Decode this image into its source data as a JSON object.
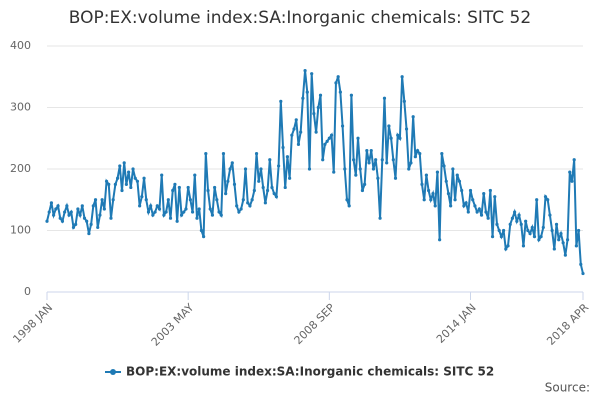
{
  "chart_data": {
    "type": "line",
    "title": "BOP:EX:volume index:SA:Inorganic chemicals: SITC 52",
    "source": "Source:",
    "categories": [
      "1998 JAN",
      null,
      null,
      null,
      null,
      null,
      null,
      null,
      null,
      null,
      null,
      null,
      null,
      null,
      null,
      null,
      null,
      null,
      null,
      null,
      null,
      null,
      null,
      null,
      null,
      null,
      null,
      null,
      null,
      null,
      null,
      null,
      null,
      null,
      null,
      null,
      null,
      null,
      null,
      null,
      null,
      null,
      null,
      null,
      null,
      null,
      null,
      null,
      null,
      null,
      null,
      null,
      null,
      null,
      null,
      null,
      null,
      null,
      null,
      null,
      null,
      null,
      null,
      null,
      "2003 MAY",
      null,
      null,
      null,
      null,
      null,
      null,
      null,
      null,
      null,
      null,
      null,
      null,
      null,
      null,
      null,
      null,
      null,
      null,
      null,
      null,
      null,
      null,
      null,
      null,
      null,
      null,
      null,
      null,
      null,
      null,
      null,
      null,
      null,
      null,
      null,
      null,
      null,
      null,
      null,
      null,
      null,
      null,
      null,
      null,
      null,
      null,
      null,
      null,
      null,
      null,
      null,
      null,
      null,
      null,
      null,
      null,
      null,
      null,
      null,
      null,
      null,
      null,
      null,
      "2008 SEP",
      null,
      null,
      null,
      null,
      null,
      null,
      null,
      null,
      null,
      null,
      null,
      null,
      null,
      null,
      null,
      null,
      null,
      null,
      null,
      null,
      null,
      null,
      null,
      null,
      null,
      null,
      null,
      null,
      null,
      null,
      null,
      null,
      null,
      null,
      null,
      null,
      null,
      null,
      null,
      null,
      null,
      null,
      null,
      null,
      null,
      null,
      null,
      null,
      null,
      null,
      null,
      null,
      null,
      null,
      null,
      null,
      null,
      null,
      null,
      null,
      null,
      null,
      null,
      "2014 JAN",
      null,
      null,
      null,
      null,
      null,
      null,
      null,
      null,
      null,
      null,
      null,
      null,
      null,
      null,
      null,
      null,
      null,
      null,
      null,
      null,
      null,
      null,
      null,
      null,
      null,
      null,
      null,
      null,
      null,
      null,
      null,
      null,
      null,
      null,
      null,
      null,
      null,
      null,
      null,
      null,
      null,
      null,
      null,
      null,
      null,
      null,
      null,
      null,
      null,
      null,
      "2018 APR"
    ],
    "series": [
      {
        "name": "BOP:EX:volume index:SA:Inorganic chemicals: SITC 52",
        "color": "#1f7ab5",
        "values": [
          115,
          130,
          145,
          125,
          135,
          140,
          120,
          115,
          130,
          140,
          125,
          130,
          105,
          110,
          135,
          125,
          140,
          120,
          115,
          95,
          110,
          140,
          150,
          105,
          125,
          150,
          135,
          180,
          175,
          120,
          150,
          175,
          185,
          205,
          165,
          210,
          175,
          195,
          170,
          200,
          185,
          180,
          140,
          155,
          185,
          150,
          130,
          140,
          125,
          130,
          140,
          135,
          190,
          125,
          130,
          150,
          120,
          165,
          175,
          115,
          170,
          125,
          130,
          135,
          170,
          150,
          130,
          190,
          120,
          135,
          100,
          90,
          225,
          165,
          135,
          125,
          170,
          150,
          130,
          125,
          225,
          160,
          180,
          200,
          210,
          175,
          140,
          130,
          135,
          150,
          200,
          145,
          140,
          150,
          165,
          225,
          180,
          200,
          170,
          145,
          165,
          215,
          170,
          160,
          155,
          205,
          310,
          235,
          170,
          220,
          185,
          255,
          265,
          280,
          240,
          260,
          315,
          360,
          325,
          200,
          355,
          290,
          260,
          300,
          320,
          215,
          240,
          245,
          250,
          255,
          195,
          340,
          350,
          325,
          270,
          200,
          150,
          140,
          320,
          215,
          190,
          250,
          200,
          165,
          175,
          230,
          210,
          230,
          200,
          215,
          185,
          120,
          215,
          315,
          210,
          270,
          250,
          215,
          185,
          255,
          250,
          350,
          310,
          265,
          200,
          210,
          285,
          220,
          230,
          225,
          175,
          150,
          190,
          165,
          150,
          160,
          140,
          195,
          85,
          225,
          205,
          180,
          160,
          140,
          200,
          150,
          190,
          180,
          165,
          140,
          145,
          130,
          165,
          150,
          140,
          130,
          135,
          125,
          160,
          130,
          120,
          165,
          90,
          155,
          110,
          100,
          90,
          100,
          70,
          75,
          110,
          120,
          130,
          115,
          125,
          110,
          75,
          115,
          100,
          95,
          105,
          90,
          150,
          85,
          90,
          105,
          155,
          150,
          125,
          100,
          70,
          110,
          85,
          95,
          80,
          60,
          85,
          195,
          180,
          215,
          75,
          100,
          45,
          30
        ]
      }
    ],
    "ylim": [
      0,
      400
    ],
    "yticks": [
      0,
      100,
      200,
      300,
      400
    ],
    "grid": true,
    "legend": "bottom"
  }
}
